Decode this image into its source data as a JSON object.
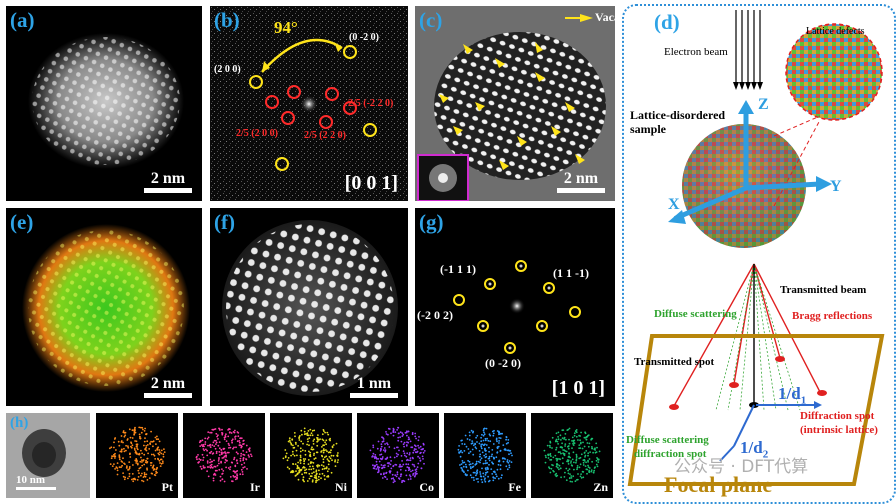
{
  "panels": {
    "a": {
      "label": "(a)",
      "scale": "2 nm"
    },
    "b": {
      "label": "(b)",
      "zone_axis": "[0 0 1]",
      "angle": "94°",
      "spots": {
        "s020": "(0 -2 0)",
        "s200": "(2 0 0)",
        "r220": "2/5 (-2 2 0)",
        "r200": "2/5 (2 0 0)",
        "r220b": "2/5 (2 2 0)"
      }
    },
    "c": {
      "label": "(c)",
      "legend": "Vacancy",
      "scale": "2 nm"
    },
    "d": {
      "label": "(d)",
      "electron_beam": "Electron beam",
      "lattice_defects": "Lattice defects",
      "sample": "Lattice-disordered\nsample",
      "axis_z": "Z",
      "axis_x": "X",
      "axis_y": "Y",
      "transmitted_beam": "Transmitted beam",
      "diffuse_scattering": "Diffuse scattering",
      "bragg": "Bragg reflections",
      "transmitted_spot": "Transmitted spot",
      "d1": "1/d",
      "d1_sub": "1",
      "d2": "1/d",
      "d2_sub": "2",
      "diffraction_spot": "Diffraction spot",
      "intrinsic": "(intrinsic lattice)",
      "diffuse_spot_1": "Diffuse scattering",
      "diffuse_spot_2": "diffraction spot",
      "focal_plane": "Focal plane",
      "watermark": "公众号 · DFT代算"
    },
    "e": {
      "label": "(e)",
      "scale": "2 nm"
    },
    "f": {
      "label": "(f)",
      "scale": "1 nm"
    },
    "g": {
      "label": "(g)",
      "zone_axis": "[1 0 1]",
      "spots": {
        "m111": "(-1 1 1)",
        "p11m1": "(1 1 -1)",
        "m202": "(-2 0 2)",
        "m020": "(0 -2 0)"
      }
    },
    "h": {
      "label": "(h)",
      "scale": "10 nm"
    }
  },
  "eds": [
    {
      "element": "Pt",
      "color": "#ff8a1a"
    },
    {
      "element": "Ir",
      "color": "#ff3aa8"
    },
    {
      "element": "Ni",
      "color": "#e8e020"
    },
    {
      "element": "Co",
      "color": "#9a3cff"
    },
    {
      "element": "Fe",
      "color": "#2e9cff"
    },
    {
      "element": "Zn",
      "color": "#18c070"
    }
  ]
}
